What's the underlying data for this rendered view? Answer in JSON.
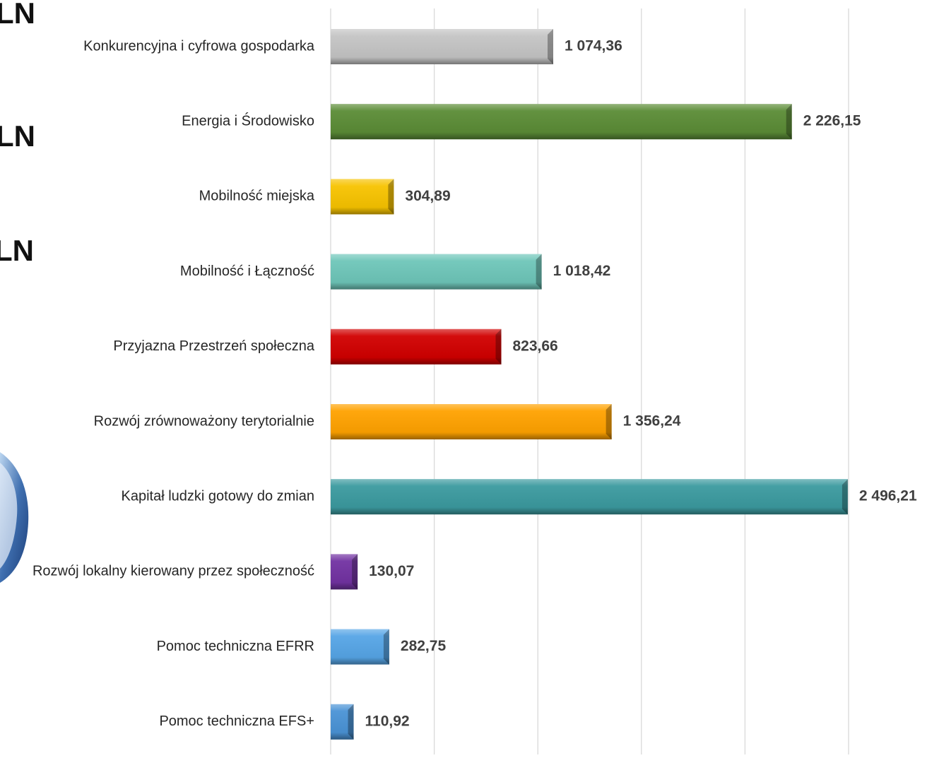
{
  "side_texts": [
    "LN",
    "LN",
    "LN"
  ],
  "chart_data": {
    "type": "bar",
    "orientation": "horizontal",
    "categories": [
      "Konkurencyjna i cyfrowa gospodarka",
      "Energia i Środowisko",
      "Mobilność miejska",
      "Mobilność i Łączność",
      "Przyjazna Przestrzeń społeczna",
      "Rozwój zrównoważony terytorialnie",
      "Kapitał ludzki gotowy do zmian",
      "Rozwój lokalny kierowany przez społeczność",
      "Pomoc techniczna EFRR",
      "Pomoc techniczna EFS+"
    ],
    "values": [
      1074.36,
      2226.15,
      304.89,
      1018.42,
      823.66,
      1356.24,
      2496.21,
      130.07,
      282.75,
      110.92
    ],
    "value_labels": [
      "1 074,36",
      "2 226,15",
      "304,89",
      "1 018,42",
      "823,66",
      "1 356,24",
      "2 496,21",
      "130,07",
      "282,75",
      "110,92"
    ],
    "colors": [
      "#c4c4c4",
      "#5b8c36",
      "#f7c300",
      "#6ec6b9",
      "#d10000",
      "#ffa200",
      "#3b9a9f",
      "#7232a2",
      "#56a5e6",
      "#4a93d6"
    ],
    "xlim": [
      0,
      2500
    ],
    "xticks": [
      0,
      500,
      1000,
      1500,
      2000,
      2500
    ],
    "grid": true
  }
}
